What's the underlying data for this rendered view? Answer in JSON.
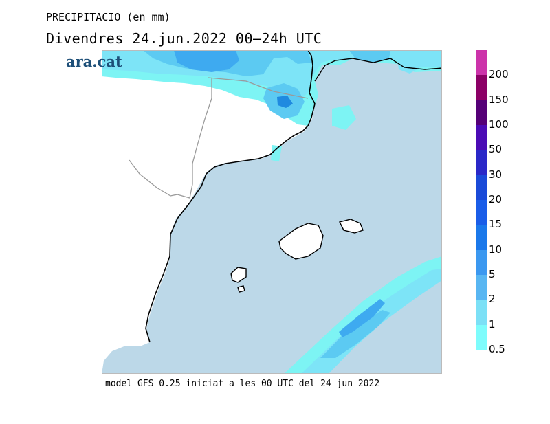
{
  "header": {
    "title": "PRECIPITACIO (en mm)",
    "subtitle": "Divendres  24.jun.2022 00—24h UTC"
  },
  "brand": {
    "logo_text": "ara.cat"
  },
  "footer": {
    "text": "model GFS 0.25 iniciat a les 00 UTC del 24 jun 2022"
  },
  "map": {
    "region": "Catalunya i mar Balear",
    "sea_color": "#bcd8e8",
    "land_color": "#ffffff",
    "coast_color": "#000000",
    "border_color": "#9a9a9a",
    "precip_colors": {
      "0.5": "#7df4f4",
      "1": "#7de4f7",
      "2": "#5ccaf2",
      "5": "#3eaaf0",
      "10": "#1f8ae0"
    }
  },
  "legend": {
    "labels": [
      "200",
      "150",
      "100",
      "50",
      "30",
      "20",
      "15",
      "10",
      "5",
      "2",
      "1",
      "0.5"
    ],
    "colors": [
      "#cc33aa",
      "#8c0066",
      "#550077",
      "#4b0bb5",
      "#2a28c8",
      "#1a4ad8",
      "#1a5de8",
      "#1a78ea",
      "#3b98f0",
      "#58b6f2",
      "#7ce0f6",
      "#7efcfc"
    ]
  }
}
